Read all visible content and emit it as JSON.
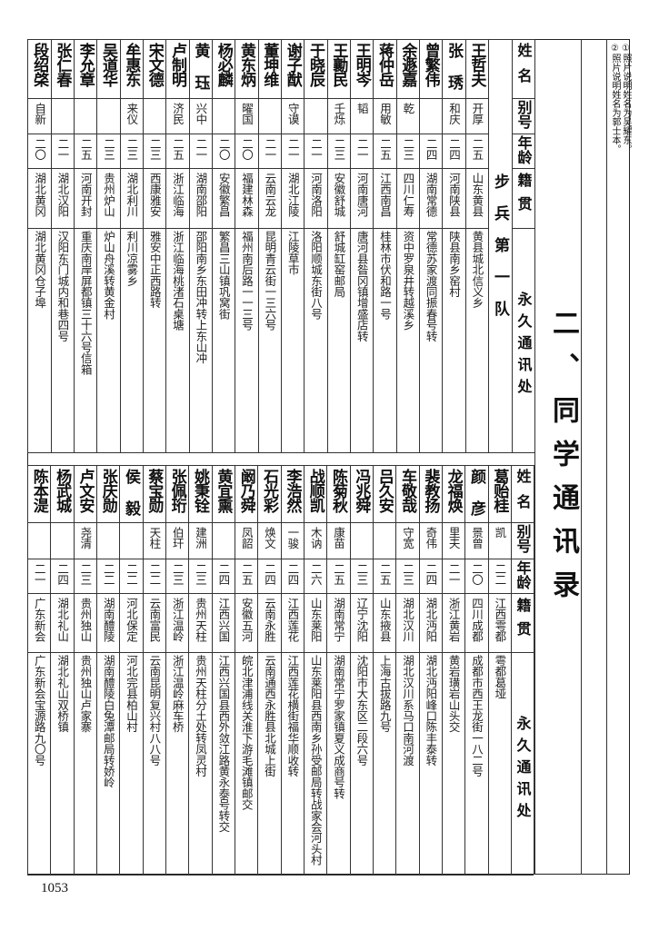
{
  "notes": [
    "①照片说明姓名为吴耀东。",
    "②照片说明姓名为郭士本。"
  ],
  "title": "二、同学通讯录",
  "headers": {
    "name": "姓名",
    "alias": "别号",
    "age": "年龄",
    "origin": "籍贯",
    "address": "永久通讯处"
  },
  "top_table": {
    "section": "步兵第一队",
    "rows": [
      {
        "name": "王哲夫",
        "alias": "开厚",
        "age": "二五",
        "origin": "山东黄县",
        "address": "黄县城北信义乡"
      },
      {
        "name": "张 琇",
        "alias": "和庆",
        "age": "二四",
        "origin": "河南陕县",
        "address": "陕县南乡窑村"
      },
      {
        "name": "曾繁伟",
        "alias": "",
        "age": "二四",
        "origin": "湖南常德",
        "address": "常德苏家渡同振春号转"
      },
      {
        "name": "余遯嘉",
        "alias": "乾",
        "age": "二三",
        "origin": "四川仁寿",
        "address": "资中罗泉井转越溪乡"
      },
      {
        "name": "蒋仲岳",
        "alias": "用敏",
        "age": "二五",
        "origin": "江西南昌",
        "address": "桂林市伏和路一号"
      },
      {
        "name": "王明岑",
        "alias": "韬",
        "age": "二一",
        "origin": "河南唐河",
        "address": "唐河县昝冈镇增盛店转"
      },
      {
        "name": "王勷民",
        "alias": "壬烁",
        "age": "二三",
        "origin": "安徽舒城",
        "address": "舒城缸窑邮局"
      },
      {
        "name": "于晓辰",
        "alias": "",
        "age": "二一",
        "origin": "河南洛阳",
        "address": "洛阳顺城东街八号"
      },
      {
        "name": "谢子猷",
        "alias": "守谟",
        "age": "二一",
        "origin": "湖北江陵",
        "address": "江陵草市"
      },
      {
        "name": "董坤维",
        "alias": "",
        "age": "二一",
        "origin": "云南云龙",
        "address": "昆明青云街一三六号"
      },
      {
        "name": "黄东炳",
        "alias": "曜国",
        "age": "二〇",
        "origin": "福建林森",
        "address": "福州南后路一一三号"
      },
      {
        "name": "杨必麟",
        "alias": "",
        "age": "二〇",
        "origin": "安徽繁昌",
        "address": "繁昌三山镇巩窝街"
      },
      {
        "name": "黄 珏",
        "alias": "兴中",
        "age": "二一",
        "origin": "湖南邵阳",
        "address": "邵阳南乡东田冲转上东山冲"
      },
      {
        "name": "卢制明",
        "alias": "济民",
        "age": "二五",
        "origin": "浙江临海",
        "address": "浙江临海桃渚石桌塘"
      },
      {
        "name": "宋文德",
        "alias": "",
        "age": "二三",
        "origin": "西康雅安",
        "address": "雅安中正西路转"
      },
      {
        "name": "牟惠东",
        "alias": "来仪",
        "age": "二三",
        "origin": "湖北利川",
        "address": "利川凉雾乡"
      },
      {
        "name": "吴道华",
        "alias": "",
        "age": "二三",
        "origin": "贵州炉山",
        "address": "炉山舟溪转黄金村"
      },
      {
        "name": "李允章",
        "alias": "",
        "age": "二五",
        "origin": "河南开封",
        "address": "重庆南岸屏都镇三十六号信箱"
      },
      {
        "name": "张仁春",
        "alias": "",
        "age": "二一",
        "origin": "湖北汉阳",
        "address": "汉阳东门城内和巷四号"
      },
      {
        "name": "段绍棨",
        "alias": "自新",
        "age": "二〇",
        "origin": "湖北黄冈",
        "address": "湖北黄冈仓子埠"
      }
    ]
  },
  "bottom_table": {
    "rows": [
      {
        "name": "葛贻桂",
        "alias": "凯",
        "age": "二二",
        "origin": "江西雩都",
        "address": "雩都葛垭"
      },
      {
        "name": "颜 彦",
        "alias": "景曾",
        "age": "二〇",
        "origin": "四川成都",
        "address": "成都市西王龙街一八二号"
      },
      {
        "name": "龙福焕",
        "alias": "里夫",
        "age": "二一",
        "origin": "浙江黄岩",
        "address": "黄岩璜岩山头交"
      },
      {
        "name": "裴教扬",
        "alias": "奇伟",
        "age": "二四",
        "origin": "湖北沔阳",
        "address": "湖北沔阳峰口陈丰泰转"
      },
      {
        "name": "车敬哉",
        "alias": "守宽",
        "age": "二三",
        "origin": "湖北汉川",
        "address": "湖北汉川系马口南河渡"
      },
      {
        "name": "吕久安",
        "alias": "",
        "age": "二五",
        "origin": "山东掖县",
        "address": "上海古拔路九号"
      },
      {
        "name": "冯兆舜",
        "alias": "",
        "age": "二三",
        "origin": "辽宁沈阳",
        "address": "沈阳市大东区二段六号"
      },
      {
        "name": "陈菊秋",
        "alias": "康苗",
        "age": "二五",
        "origin": "湖南常宁",
        "address": "湖南常宁罗家镇夏义成商号转"
      },
      {
        "name": "战顺凯",
        "alias": "木讷",
        "age": "二六",
        "origin": "山东莱阳",
        "address": "山东莱阳县西南乡孙受邮局转战家会河头村"
      },
      {
        "name": "李浩然",
        "alias": "一骏",
        "age": "二四",
        "origin": "江西莲花",
        "address": "江西莲花横街福华顺收转"
      },
      {
        "name": "石光彩",
        "alias": "焕文",
        "age": "二四",
        "origin": "云南永胜",
        "address": "云南通西永胜县北城上街"
      },
      {
        "name": "阚乃舜",
        "alias": "凤韶",
        "age": "二五",
        "origin": "安徽五河",
        "address": "皖北津浦线关淮下游毛滩镇邮交"
      },
      {
        "name": "黄宜熏",
        "alias": "",
        "age": "二四",
        "origin": "江西兴国",
        "address": "江西兴国县西外敛江路黄永泰号转交"
      },
      {
        "name": "姚秉铨",
        "alias": "建洲",
        "age": "二三",
        "origin": "贵州天柱",
        "address": "贵州天柱分土处转凤灵村"
      },
      {
        "name": "张佩珩",
        "alias": "伯玕",
        "age": "二三",
        "origin": "浙江温岭",
        "address": "浙江温岭麻车桥"
      },
      {
        "name": "蔡宝勋",
        "alias": "天柱",
        "age": "二二",
        "origin": "云南富民",
        "address": "云南昆明复兴村八八号"
      },
      {
        "name": "侯 毅",
        "alias": "",
        "age": "二二",
        "origin": "河北保定",
        "address": "河北完县柏山村"
      },
      {
        "name": "张庆勋",
        "alias": "",
        "age": "二二",
        "origin": "湖南醴陵",
        "address": "湖南醴陵白兔潭邮局转娇岭"
      },
      {
        "name": "卢文安",
        "alias": "尧清",
        "age": "二三",
        "origin": "贵州独山",
        "address": "贵州独山卢家寨"
      },
      {
        "name": "杨武城",
        "alias": "",
        "age": "二四",
        "origin": "湖北礼山",
        "address": "湖北礼山双桥镇"
      },
      {
        "name": "陈本湜",
        "alias": "",
        "age": "二一",
        "origin": "广东新会",
        "address": "广东新会宝源路九〇号"
      }
    ]
  },
  "page_number": "1053"
}
